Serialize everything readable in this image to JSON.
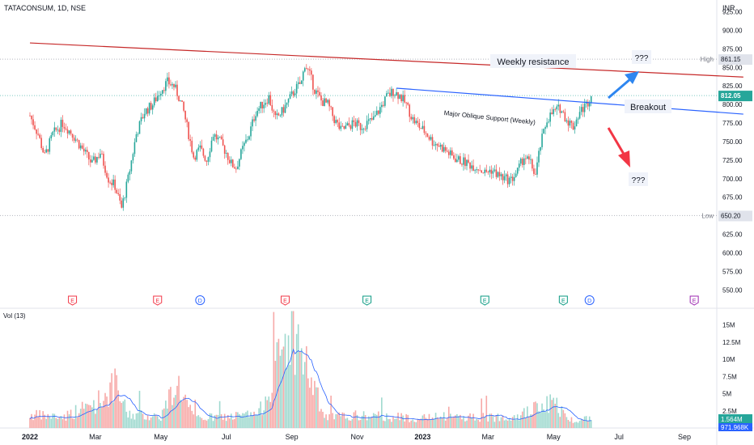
{
  "header": {
    "symbol": "TATACONSUM, 1D, NSE",
    "currency": "INR"
  },
  "price_axis": {
    "ticks": [
      "925.00",
      "900.00",
      "875.00",
      "850.00",
      "825.00",
      "800.00",
      "775.00",
      "750.00",
      "725.00",
      "700.00",
      "675.00",
      "650.00",
      "625.00",
      "600.00",
      "575.00",
      "550.00"
    ],
    "tick_values": [
      925,
      900,
      875,
      850,
      825,
      800,
      775,
      750,
      725,
      700,
      675,
      650,
      625,
      600,
      575,
      550
    ],
    "ylim": [
      550,
      935
    ],
    "high_label": "High",
    "high_value": "861.15",
    "low_label": "Low",
    "low_value": "650.20",
    "last_price": "812.05",
    "last_price_color": "#26a69a"
  },
  "volume_axis": {
    "title": "Vol (13)",
    "ticks": [
      "15M",
      "12.5M",
      "10M",
      "7.5M",
      "5M",
      "2.5M"
    ],
    "tick_values": [
      15,
      12.5,
      10,
      7.5,
      5,
      2.5
    ],
    "ylim": [
      0,
      17.5
    ],
    "last_volume": "1.564M",
    "last_volume_color": "#26a69a",
    "ma_value": "971.968K",
    "ma_color": "#2962ff"
  },
  "time_axis": {
    "labels": [
      "2022",
      "Mar",
      "May",
      "Jul",
      "Sep",
      "Nov",
      "2023",
      "Mar",
      "May",
      "Jul",
      "Sep"
    ],
    "label_positions": [
      0,
      2,
      4,
      6,
      8,
      10,
      12,
      14,
      16,
      18,
      20
    ]
  },
  "events": [
    {
      "type": "E",
      "month_index": 1.3,
      "color": "#f23645"
    },
    {
      "type": "E",
      "month_index": 3.9,
      "color": "#f23645"
    },
    {
      "type": "D",
      "month_index": 5.2,
      "color": "#2962ff"
    },
    {
      "type": "E",
      "month_index": 7.8,
      "color": "#f23645"
    },
    {
      "type": "E",
      "month_index": 10.3,
      "color": "#089981"
    },
    {
      "type": "E",
      "month_index": 13.9,
      "color": "#089981"
    },
    {
      "type": "E",
      "month_index": 16.3,
      "color": "#089981"
    },
    {
      "type": "D",
      "month_index": 17.1,
      "color": "#2962ff"
    },
    {
      "type": "E",
      "month_index": 20.3,
      "color": "#9c27b0"
    }
  ],
  "annotations": {
    "weekly_resistance": "Weekly resistance",
    "support_line": "Major Oblique Support (Weekly)",
    "breakout": "Breakout",
    "question_up": "???",
    "question_down": "???"
  },
  "colors": {
    "up": "#26a69a",
    "down": "#ef5350",
    "resistance_line": "#c62828",
    "support_line": "#2962ff",
    "arrow_up": "#2e86f0",
    "arrow_down": "#f23645"
  },
  "chart_data": {
    "type": "candlestick",
    "title": "TATACONSUM, 1D, NSE",
    "x_unit": "months since Jan 2022",
    "price_path": [
      [
        0.0,
        785
      ],
      [
        0.25,
        760
      ],
      [
        0.45,
        730
      ],
      [
        0.7,
        760
      ],
      [
        1.0,
        775
      ],
      [
        1.3,
        760
      ],
      [
        1.6,
        740
      ],
      [
        1.9,
        720
      ],
      [
        2.15,
        735
      ],
      [
        2.4,
        700
      ],
      [
        2.6,
        690
      ],
      [
        2.8,
        660
      ],
      [
        3.0,
        700
      ],
      [
        3.25,
        760
      ],
      [
        3.5,
        790
      ],
      [
        3.75,
        800
      ],
      [
        4.0,
        820
      ],
      [
        4.2,
        830
      ],
      [
        4.4,
        825
      ],
      [
        4.55,
        810
      ],
      [
        4.7,
        790
      ],
      [
        4.85,
        760
      ],
      [
        5.0,
        730
      ],
      [
        5.2,
        740
      ],
      [
        5.4,
        725
      ],
      [
        5.6,
        760
      ],
      [
        5.8,
        750
      ],
      [
        6.0,
        735
      ],
      [
        6.15,
        720
      ],
      [
        6.3,
        715
      ],
      [
        6.5,
        740
      ],
      [
        6.7,
        760
      ],
      [
        6.9,
        790
      ],
      [
        7.1,
        800
      ],
      [
        7.3,
        810
      ],
      [
        7.5,
        780
      ],
      [
        7.7,
        790
      ],
      [
        7.9,
        805
      ],
      [
        8.1,
        820
      ],
      [
        8.3,
        830
      ],
      [
        8.4,
        855
      ],
      [
        8.55,
        840
      ],
      [
        8.7,
        820
      ],
      [
        8.9,
        805
      ],
      [
        9.1,
        800
      ],
      [
        9.3,
        780
      ],
      [
        9.5,
        765
      ],
      [
        9.7,
        770
      ],
      [
        9.9,
        775
      ],
      [
        10.1,
        770
      ],
      [
        10.3,
        775
      ],
      [
        10.5,
        780
      ],
      [
        10.7,
        795
      ],
      [
        10.9,
        810
      ],
      [
        11.1,
        818
      ],
      [
        11.3,
        812
      ],
      [
        11.5,
        800
      ],
      [
        11.7,
        780
      ],
      [
        11.9,
        770
      ],
      [
        12.1,
        762
      ],
      [
        12.3,
        750
      ],
      [
        12.5,
        745
      ],
      [
        12.7,
        738
      ],
      [
        12.9,
        730
      ],
      [
        13.1,
        725
      ],
      [
        13.3,
        722
      ],
      [
        13.5,
        718
      ],
      [
        13.7,
        715
      ],
      [
        13.9,
        708
      ],
      [
        14.1,
        712
      ],
      [
        14.3,
        705
      ],
      [
        14.5,
        700
      ],
      [
        14.7,
        698
      ],
      [
        14.9,
        710
      ],
      [
        15.1,
        730
      ],
      [
        15.3,
        720
      ],
      [
        15.45,
        705
      ],
      [
        15.6,
        745
      ],
      [
        15.8,
        780
      ],
      [
        16.0,
        790
      ],
      [
        16.2,
        795
      ],
      [
        16.4,
        780
      ],
      [
        16.6,
        770
      ],
      [
        16.8,
        790
      ],
      [
        17.0,
        800
      ],
      [
        17.15,
        812
      ]
    ],
    "volume_sample": [
      [
        0.0,
        2.1
      ],
      [
        1.0,
        1.8
      ],
      [
        2.0,
        4.0
      ],
      [
        2.6,
        6.8
      ],
      [
        3.0,
        2.2
      ],
      [
        4.0,
        1.9
      ],
      [
        4.5,
        7.5
      ],
      [
        5.0,
        1.6
      ],
      [
        6.0,
        1.8
      ],
      [
        7.0,
        2.3
      ],
      [
        8.0,
        16.5
      ],
      [
        9.0,
        1.7
      ],
      [
        10.0,
        2.0
      ],
      [
        11.0,
        1.8
      ],
      [
        12.0,
        1.6
      ],
      [
        13.0,
        1.9
      ],
      [
        14.0,
        1.7
      ],
      [
        15.0,
        2.2
      ],
      [
        16.0,
        4.2
      ],
      [
        16.5,
        1.3
      ],
      [
        17.15,
        1.564
      ]
    ],
    "x_ticks": [
      "2022",
      "Mar",
      "May",
      "Jul",
      "Sep",
      "Nov",
      "2023",
      "Mar",
      "May",
      "Jul",
      "Sep"
    ],
    "ylim": [
      550,
      935
    ],
    "lines": [
      {
        "name": "Weekly resistance",
        "color": "#c62828",
        "from": [
          0,
          883
        ],
        "to": [
          21.8,
          837
        ]
      },
      {
        "name": "Major Oblique Support (Weekly)",
        "color": "#2962ff",
        "from": [
          11.2,
          822
        ],
        "to": [
          21.8,
          787
        ]
      }
    ],
    "high": 861.15,
    "low": 650.2,
    "last": 812.05,
    "grid": false
  }
}
